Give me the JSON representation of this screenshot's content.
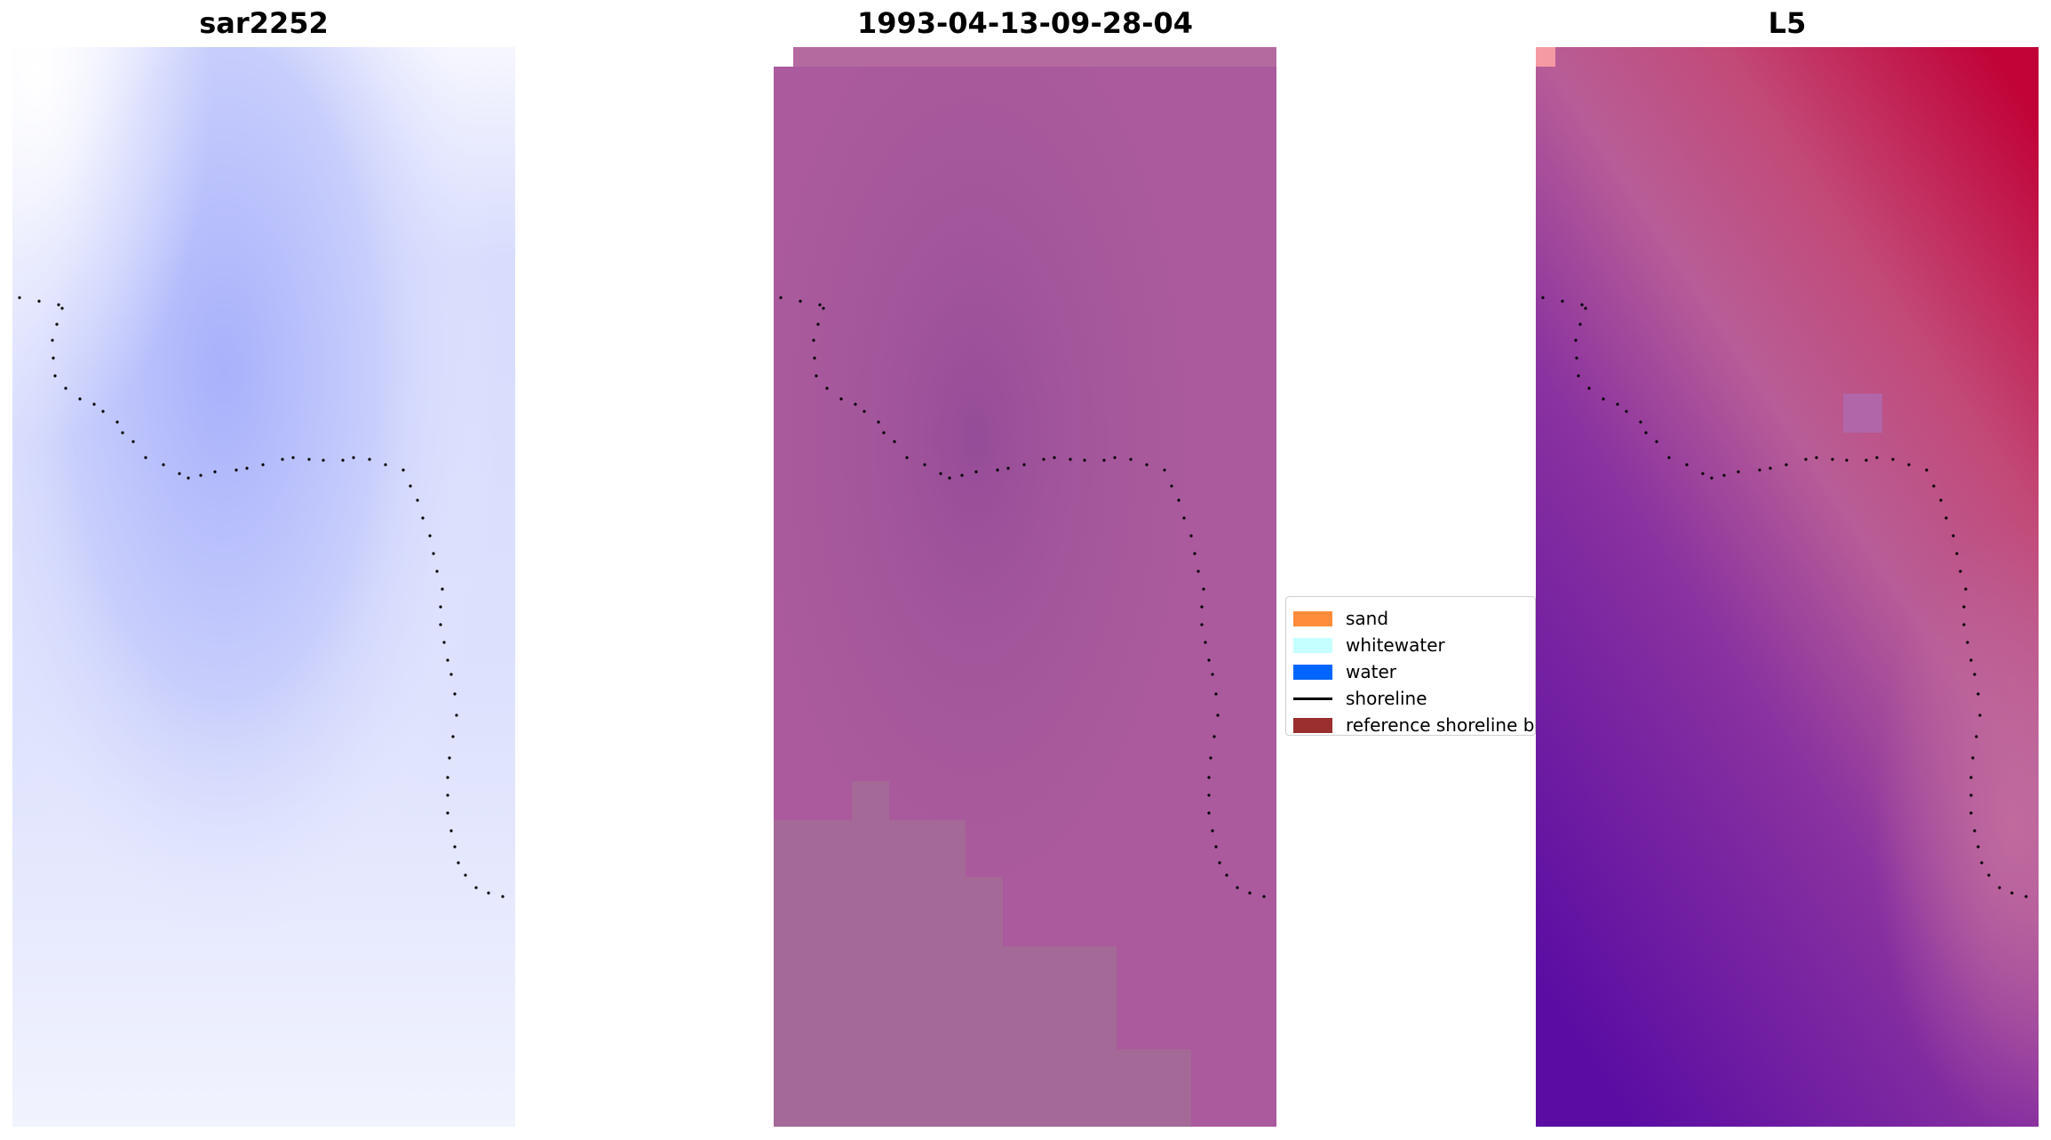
{
  "chart_data": [
    {
      "type": "heatmap",
      "title": "sar2252",
      "colormap": "light blue-white",
      "colors": {
        "light": "#f4f6fe",
        "dark": "#a8b1fb"
      },
      "axes_visible": false
    },
    {
      "type": "heatmap",
      "title": "1993-04-13-09-28-04",
      "colormap": "mauve-purple",
      "colors": {
        "pink": "#b56a9f",
        "purple": "#954c98",
        "grey": "#a46996"
      },
      "axes_visible": false
    },
    {
      "type": "heatmap",
      "title": "L5",
      "colormap": "purple-red",
      "colors": {
        "purple": "#5b0da3",
        "mid": "#b85d97",
        "red": "#c10338"
      },
      "axes_visible": false
    }
  ],
  "legend": {
    "placement": "center",
    "items": [
      {
        "label": "sand",
        "kind": "patch",
        "color": "#ff8c3a"
      },
      {
        "label": "whitewater",
        "kind": "patch",
        "color": "#c6ffff"
      },
      {
        "label": "water",
        "kind": "patch",
        "color": "#0066ff"
      },
      {
        "label": "shoreline",
        "kind": "line",
        "color": "#000000"
      },
      {
        "label": "reference shoreline buffer",
        "kind": "patch",
        "color": "#9b2f2f"
      }
    ]
  }
}
